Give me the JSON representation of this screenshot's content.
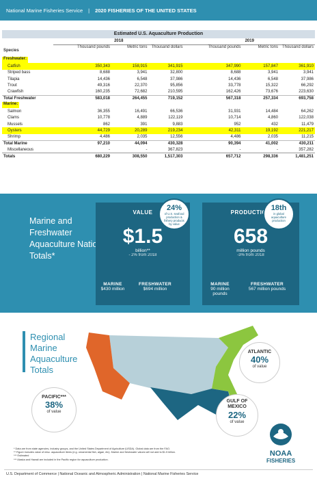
{
  "header": {
    "org": "National Marine Fisheries Service",
    "sep": "|",
    "title": "2020 FISHERIES OF THE UNITED STATES"
  },
  "table": {
    "title": "Estimated U.S. Aquaculture Production",
    "year1": "2018",
    "year2": "2019",
    "species_label": "Species",
    "cols": [
      "Thousand pounds",
      "Metric tons",
      "Thousand dollars",
      "Thousand pounds",
      "Metric tons",
      "Thousand dollars"
    ],
    "rows": [
      {
        "name": "Freshwater:",
        "type": "section",
        "v": []
      },
      {
        "name": "Catfish",
        "type": "highlight",
        "v": [
          "350,343",
          "158,915",
          "341,915",
          "347,990",
          "157,847",
          "361,910"
        ]
      },
      {
        "name": "Striped bass",
        "type": "item",
        "v": [
          "8,688",
          "3,941",
          "32,800",
          "8,688",
          "3,941",
          "3,941"
        ]
      },
      {
        "name": "Tilapia",
        "type": "item",
        "v": [
          "14,436",
          "6,548",
          "37,986",
          "14,436",
          "6,548",
          "37,986"
        ]
      },
      {
        "name": "Trout",
        "type": "item",
        "v": [
          "49,316",
          "22,370",
          "95,856",
          "33,778",
          "15,322",
          "66,292"
        ]
      },
      {
        "name": "Crawfish",
        "type": "item",
        "v": [
          "160,235",
          "72,682",
          "210,595",
          "162,426",
          "73,676",
          "223,630"
        ]
      },
      {
        "name": "Total Freshwater",
        "type": "total",
        "v": [
          "583,018",
          "264,455",
          "719,152",
          "567,318",
          "257,334",
          "693,758"
        ]
      },
      {
        "name": "Marine:",
        "type": "section",
        "v": []
      },
      {
        "name": "Salmon",
        "type": "item",
        "v": [
          "36,355",
          "16,491",
          "66,536",
          "31,931",
          "14,484",
          "64,262"
        ]
      },
      {
        "name": "Clams",
        "type": "item",
        "v": [
          "10,778",
          "4,889",
          "122,119",
          "10,714",
          "4,860",
          "122,038"
        ]
      },
      {
        "name": "Mussels",
        "type": "item",
        "v": [
          "862",
          "391",
          "9,883",
          "952",
          "432",
          "11,479"
        ]
      },
      {
        "name": "Oysters",
        "type": "highlight",
        "v": [
          "44,729",
          "20,289",
          "219,234",
          "42,311",
          "19,192",
          "221,217"
        ]
      },
      {
        "name": "Shrimp",
        "type": "item",
        "v": [
          "4,486",
          "2,035",
          "12,556",
          "4,486",
          "2,035",
          "11,215"
        ]
      },
      {
        "name": "Total Marine",
        "type": "total",
        "v": [
          "97,210",
          "44,094",
          "430,328",
          "90,394",
          "41,002",
          "430,211"
        ]
      },
      {
        "name": "Miscellaneous",
        "type": "item",
        "v": [
          "-",
          "-",
          "367,823",
          "-",
          "-",
          "357,282"
        ]
      },
      {
        "name": "Totals",
        "type": "grand",
        "v": [
          "680,229",
          "308,550",
          "1,517,303",
          "657,712",
          "298,336",
          "1,481,251"
        ]
      }
    ]
  },
  "totals_panel": {
    "title": "Marine and Freshwater Aquaculture National Totals*",
    "value": {
      "label": "VALUE",
      "big": "$1.5",
      "unit": "billion**",
      "change": "- 2% from 2018",
      "badge_big": "24%",
      "badge_small": "of U.S. seafood production & fishery products by value",
      "marine_label": "MARINE",
      "marine_val": "$430 million",
      "fresh_label": "FRESHWATER",
      "fresh_val": "$694 million"
    },
    "production": {
      "label": "PRODUCTION",
      "big": "658",
      "unit": "million pounds",
      "change": "-3% from 2018",
      "badge_big": "18th",
      "badge_small": "in global aquaculture production",
      "marine_label": "MARINE",
      "marine_val": "90 million pounds",
      "fresh_label": "FRESHWATER",
      "fresh_val": "567 million pounds"
    }
  },
  "regional": {
    "title": "Regional Marine Aquaculture Totals",
    "atlantic": {
      "name": "ATLANTIC",
      "pct": "40%",
      "of": "of value"
    },
    "pacific": {
      "name": "PACIFIC***",
      "pct": "38%",
      "of": "of value"
    },
    "gulf": {
      "name": "GULF OF MEXICO",
      "pct": "22%",
      "of": "of value"
    },
    "colors": {
      "pacific": "#e0662a",
      "gulf": "#1d6682",
      "atlantic": "#8cc63f",
      "inland": "#b7d0d9"
    }
  },
  "notes": [
    "* Data are from state agencies, industry groups, and the United States Department of Agriculture (USDA). Global data are from the FAO.",
    "** Figure includes value of misc. aquaculture items (e.g. ornamental fish, algae, etc). Marine and freshwater values will not add to $1.5 billion.",
    "*** Estimated",
    "*** Alaska and Hawaii are included in the Pacific region for aquaculture production."
  ],
  "logo": {
    "name": "NOAA",
    "sub": "FISHERIES"
  },
  "footer": "U.S. Department of Commerce | National Oceanic and Atmospheric Administration | National Marine Fisheries Service"
}
